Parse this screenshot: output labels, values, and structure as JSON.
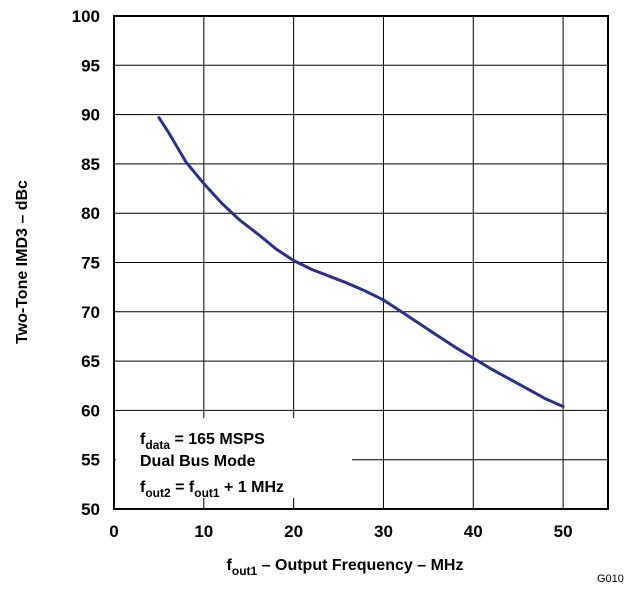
{
  "chart_data": {
    "type": "line",
    "title": "",
    "xlabel": {
      "main": "f",
      "sub": "out1",
      "rest": " – Output Frequency – MHz"
    },
    "ylabel": "Two-Tone IMD3 – dBc",
    "xlim": [
      0,
      55
    ],
    "ylim": [
      50,
      100
    ],
    "xticks": [
      0,
      10,
      20,
      30,
      40,
      50
    ],
    "yticks": [
      50,
      55,
      60,
      65,
      70,
      75,
      80,
      85,
      90,
      95,
      100
    ],
    "grid": true,
    "series": [
      {
        "color": "#2b2f8f",
        "x": [
          5,
          6,
          8,
          10,
          12,
          14,
          16,
          18,
          20,
          22,
          24,
          26,
          28,
          30,
          32,
          34,
          36,
          38,
          40,
          42,
          44,
          46,
          48,
          50
        ],
        "y": [
          89.7,
          88.3,
          85.2,
          83.0,
          81.0,
          79.3,
          77.9,
          76.4,
          75.2,
          74.3,
          73.6,
          72.9,
          72.1,
          71.2,
          70.0,
          68.8,
          67.6,
          66.4,
          65.3,
          64.2,
          63.2,
          62.2,
          61.2,
          60.4
        ]
      }
    ],
    "annotations": [
      {
        "main": "f",
        "sub": "data",
        "rest": " = 165 MSPS"
      },
      {
        "main": "Dual Bus Mode",
        "sub": "",
        "rest": ""
      },
      {
        "main": "f",
        "sub": "out2",
        "rest": " = f",
        "sub2": "out1",
        "rest2": " + 1 MHz"
      }
    ],
    "figure_code": "G010"
  }
}
